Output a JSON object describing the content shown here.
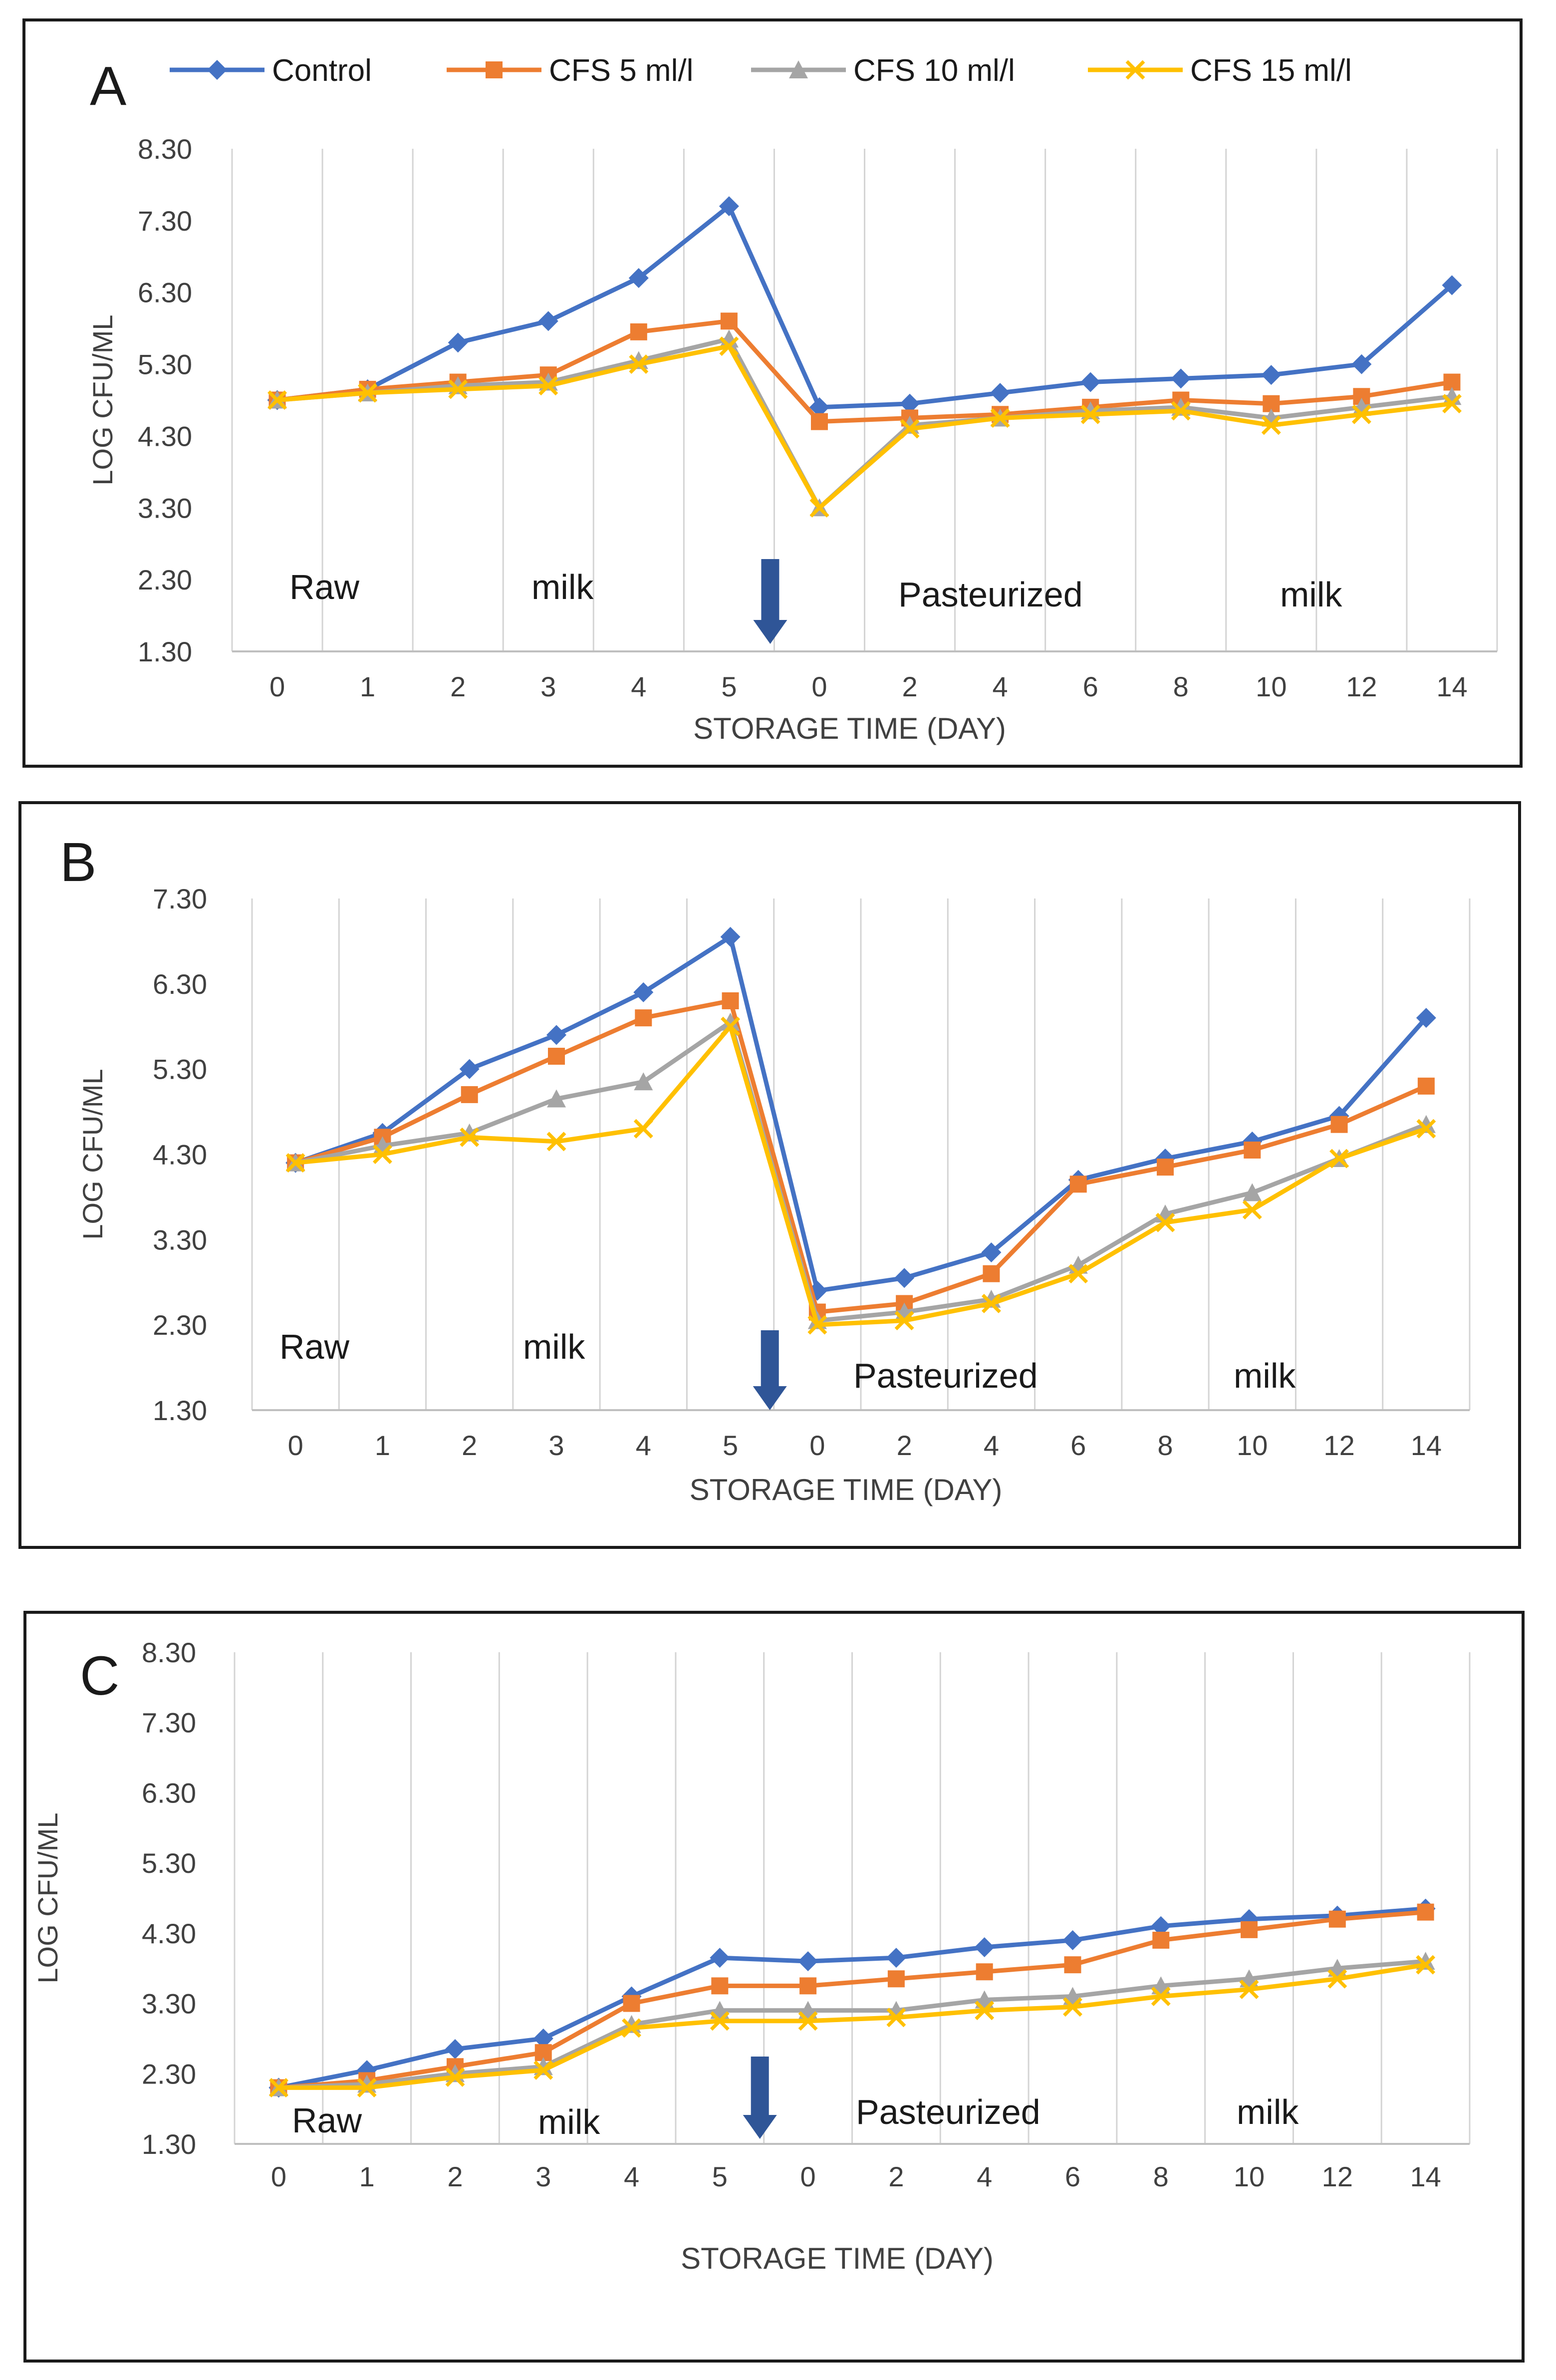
{
  "legend": [
    {
      "name": "Control",
      "color": "#4472C4",
      "marker": "diamond"
    },
    {
      "name": "CFS 5 ml/l",
      "color": "#ED7D31",
      "marker": "square"
    },
    {
      "name": "CFS 10 ml/l",
      "color": "#A5A5A5",
      "marker": "triangle"
    },
    {
      "name": "CFS 15 ml/l",
      "color": "#FFC000",
      "marker": "x"
    }
  ],
  "arrow_color": "#2F5597",
  "chart_data": [
    {
      "type": "line",
      "panel_label": "A",
      "categories": [
        "0",
        "1",
        "2",
        "3",
        "4",
        "5",
        "0",
        "2",
        "4",
        "6",
        "8",
        "10",
        "12",
        "14"
      ],
      "xlabel": "STORAGE TIME (DAY)",
      "ylabel": "LOG CFU/ML",
      "ylim": [
        1.3,
        8.3
      ],
      "yticks": [
        "1.30",
        "2.30",
        "3.30",
        "4.30",
        "5.30",
        "6.30",
        "7.30",
        "8.30"
      ],
      "grid": "vertical",
      "annotations": {
        "raw": "Raw",
        "milk1": "milk",
        "pasteurized": "Pasteurized",
        "milk2": "milk"
      },
      "series": [
        {
          "name": "Control",
          "values": [
            4.8,
            4.95,
            5.6,
            5.9,
            6.5,
            7.5,
            4.7,
            4.75,
            4.9,
            5.05,
            5.1,
            5.15,
            5.3,
            6.4
          ]
        },
        {
          "name": "CFS 5 ml/l",
          "values": [
            4.8,
            4.95,
            5.05,
            5.15,
            5.75,
            5.9,
            4.5,
            4.55,
            4.6,
            4.7,
            4.8,
            4.75,
            4.85,
            5.05
          ]
        },
        {
          "name": "CFS 10 ml/l",
          "values": [
            4.8,
            4.9,
            5.0,
            5.05,
            5.35,
            5.65,
            3.3,
            4.45,
            4.55,
            4.65,
            4.7,
            4.55,
            4.7,
            4.85
          ]
        },
        {
          "name": "CFS 15 ml/l",
          "values": [
            4.8,
            4.9,
            4.95,
            5.0,
            5.3,
            5.55,
            3.3,
            4.4,
            4.55,
            4.6,
            4.65,
            4.45,
            4.6,
            4.75
          ]
        }
      ]
    },
    {
      "type": "line",
      "panel_label": "B",
      "categories": [
        "0",
        "1",
        "2",
        "3",
        "4",
        "5",
        "0",
        "2",
        "4",
        "6",
        "8",
        "10",
        "12",
        "14"
      ],
      "xlabel": "STORAGE TIME (DAY)",
      "ylabel": "LOG CFU/ML",
      "ylim": [
        1.3,
        7.3
      ],
      "yticks": [
        "1.30",
        "2.30",
        "3.30",
        "4.30",
        "5.30",
        "6.30",
        "7.30"
      ],
      "grid": "vertical",
      "annotations": {
        "raw": "Raw",
        "milk1": "milk",
        "pasteurized": "Pasteurized",
        "milk2": "milk"
      },
      "series": [
        {
          "name": "Control",
          "values": [
            4.2,
            4.55,
            5.3,
            5.7,
            6.2,
            6.85,
            2.7,
            2.85,
            3.15,
            4.0,
            4.25,
            4.45,
            4.75,
            5.9
          ]
        },
        {
          "name": "CFS 5 ml/l",
          "values": [
            4.2,
            4.5,
            5.0,
            5.45,
            5.9,
            6.1,
            2.45,
            2.55,
            2.9,
            3.95,
            4.15,
            4.35,
            4.65,
            5.1
          ]
        },
        {
          "name": "CFS 10 ml/l",
          "values": [
            4.2,
            4.4,
            4.55,
            4.95,
            5.15,
            5.85,
            2.35,
            2.45,
            2.6,
            3.0,
            3.6,
            3.85,
            4.25,
            4.65
          ]
        },
        {
          "name": "CFS 15 ml/l",
          "values": [
            4.2,
            4.3,
            4.5,
            4.45,
            4.6,
            5.8,
            2.3,
            2.35,
            2.55,
            2.9,
            3.5,
            3.65,
            4.25,
            4.6
          ]
        }
      ]
    },
    {
      "type": "line",
      "panel_label": "C",
      "categories": [
        "0",
        "1",
        "2",
        "3",
        "4",
        "5",
        "0",
        "2",
        "4",
        "6",
        "8",
        "10",
        "12",
        "14"
      ],
      "xlabel": "STORAGE TIME (DAY)",
      "ylabel": "LOG CFU/ML",
      "ylim": [
        1.3,
        8.3
      ],
      "yticks": [
        "1.30",
        "2.30",
        "3.30",
        "4.30",
        "5.30",
        "6.30",
        "7.30",
        "8.30"
      ],
      "grid": "vertical",
      "annotations": {
        "raw": "Raw",
        "milk1": "milk",
        "pasteurized": "Pasteurized",
        "milk2": "milk"
      },
      "series": [
        {
          "name": "Control",
          "values": [
            2.1,
            2.35,
            2.65,
            2.8,
            3.4,
            3.95,
            3.9,
            3.95,
            4.1,
            4.2,
            4.4,
            4.5,
            4.55,
            4.65
          ]
        },
        {
          "name": "CFS 5 ml/l",
          "values": [
            2.1,
            2.2,
            2.4,
            2.6,
            3.3,
            3.55,
            3.55,
            3.65,
            3.75,
            3.85,
            4.2,
            4.35,
            4.5,
            4.6
          ]
        },
        {
          "name": "CFS 10 ml/l",
          "values": [
            2.1,
            2.15,
            2.3,
            2.4,
            3.0,
            3.2,
            3.2,
            3.2,
            3.35,
            3.4,
            3.55,
            3.65,
            3.8,
            3.9
          ]
        },
        {
          "name": "CFS 15 ml/l",
          "values": [
            2.1,
            2.1,
            2.25,
            2.35,
            2.95,
            3.05,
            3.05,
            3.1,
            3.2,
            3.25,
            3.4,
            3.5,
            3.65,
            3.85
          ]
        }
      ]
    }
  ]
}
